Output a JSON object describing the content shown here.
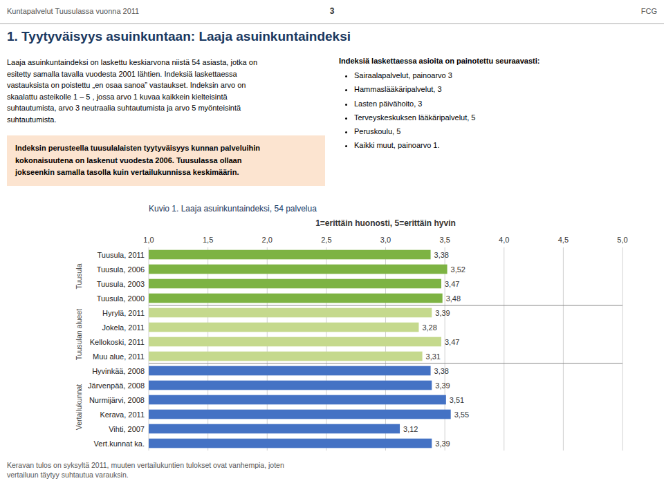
{
  "chart_data": {
    "type": "bar",
    "orientation": "horizontal",
    "title": "Kuvio 1. Laaja asuinkuntaindeksi, 54 palvelua",
    "subtitle": "1=erittäin huonosti, 5=erittäin hyvin",
    "categories": [
      "Tuusula, 2011",
      "Tuusula, 2006",
      "Tuusula, 2003",
      "Tuusula, 2000",
      "Hyrylä, 2011",
      "Jokela, 2011",
      "Kellokoski, 2011",
      "Muu alue, 2011",
      "Hyvinkää, 2008",
      "Järvenpää, 2008",
      "Nurmijärvi, 2008",
      "Kerava, 2011",
      "Vihti, 2007",
      "Vert.kunnat ka."
    ],
    "values": [
      3.38,
      3.52,
      3.47,
      3.48,
      3.39,
      3.28,
      3.47,
      3.31,
      3.38,
      3.39,
      3.51,
      3.55,
      3.12,
      3.39
    ],
    "value_labels": [
      "3,38",
      "3,52",
      "3,47",
      "3,48",
      "3,39",
      "3,28",
      "3,47",
      "3,31",
      "3,38",
      "3,39",
      "3,51",
      "3,55",
      "3,12",
      "3,39"
    ],
    "data_labels": true,
    "colors": [
      "#7db343",
      "#7db343",
      "#7db343",
      "#7db343",
      "#c5d98d",
      "#c5d98d",
      "#c5d98d",
      "#c5d98d",
      "#4472c4",
      "#4472c4",
      "#4472c4",
      "#4472c4",
      "#4472c4",
      "#4472c4"
    ],
    "xlim": [
      1.0,
      5.0
    ],
    "xticks": [
      {
        "value": 1.0,
        "label": "1,0"
      },
      {
        "value": 1.5,
        "label": "1,5"
      },
      {
        "value": 2.0,
        "label": "2,0"
      },
      {
        "value": 2.5,
        "label": "2,5"
      },
      {
        "value": 3.0,
        "label": "3,0"
      },
      {
        "value": 3.5,
        "label": "3,5"
      },
      {
        "value": 4.0,
        "label": "4,0"
      },
      {
        "value": 4.5,
        "label": "4,5"
      },
      {
        "value": 5.0,
        "label": "5,0"
      }
    ],
    "grid": true,
    "groups": [
      {
        "name": "Tuusula",
        "categories": [
          "Tuusula, 2011",
          "Tuusula, 2006",
          "Tuusula, 2003",
          "Tuusula, 2000"
        ]
      },
      {
        "name": "Tuusulan alueet",
        "categories": [
          "Hyrylä, 2011",
          "Jokela, 2011",
          "Kellokoski, 2011",
          "Muu alue, 2011"
        ]
      },
      {
        "name": "Vertailukunnat",
        "categories": [
          "Hyvinkää, 2008",
          "Järvenpää, 2008",
          "Nurmijärvi, 2008",
          "Kerava, 2011",
          "Vihti, 2007",
          "Vert.kunnat ka."
        ]
      }
    ]
  },
  "page": {
    "header_text": "Kuntapalvelut Tuusulassa vuonna 2011",
    "page_number": "3",
    "fcg_label": "FCG",
    "main_title": "1. Tyytyväisyys asuinkuntaan: Laaja asuinkuntaindeksi",
    "left_text_1": "Laaja asuinkuntaindeksi on laskettu keskiarvona niistä 54 asiasta, jotka on\nesitetty samalla tavalla vuodesta 2001 lähtien. Indeksiä laskettaessa\nvastauksista on poistettu „en osaa sanoa” vastaukset. Indeksin arvo on\nskaalattu asteikolle 1 – 5 , jossa arvo 1 kuvaa kaikkein kielteisintä\nsuhtautumista, arvo 3 neutraalia suhtautumista ja arvo 5 myönteisintä\nsuhtautumista.",
    "highlight_text": "Indeksin perusteella tuusulalaisten tyytyväisyys kunnan palveluihin\nkokonaisuutena on laskenut vuodesta 2006. Tuusulassa ollaan\njokseenkin samalla tasolla kuin vertailukunnissa keskimäärin.",
    "right_bullet_header": "Indeksiä laskettaessa asioita on painotettu seuraavasti:",
    "right_bullets": [
      "Sairaalapalvelut, painoarvo 3",
      "Hammaslääkäripalvelut, 3",
      "Lasten päivähoito, 3",
      "Terveyskeskuksen lääkäripalvelut, 5",
      "Peruskoulu, 5",
      "Kaikki muut, painoarvo 1."
    ],
    "footnote": "Keravan tulos on syksyltä 2011, muuten vertailukuntien tulokset ovat vanhempia, joten\nvertailuun täytyy suhtautua varauksin."
  }
}
